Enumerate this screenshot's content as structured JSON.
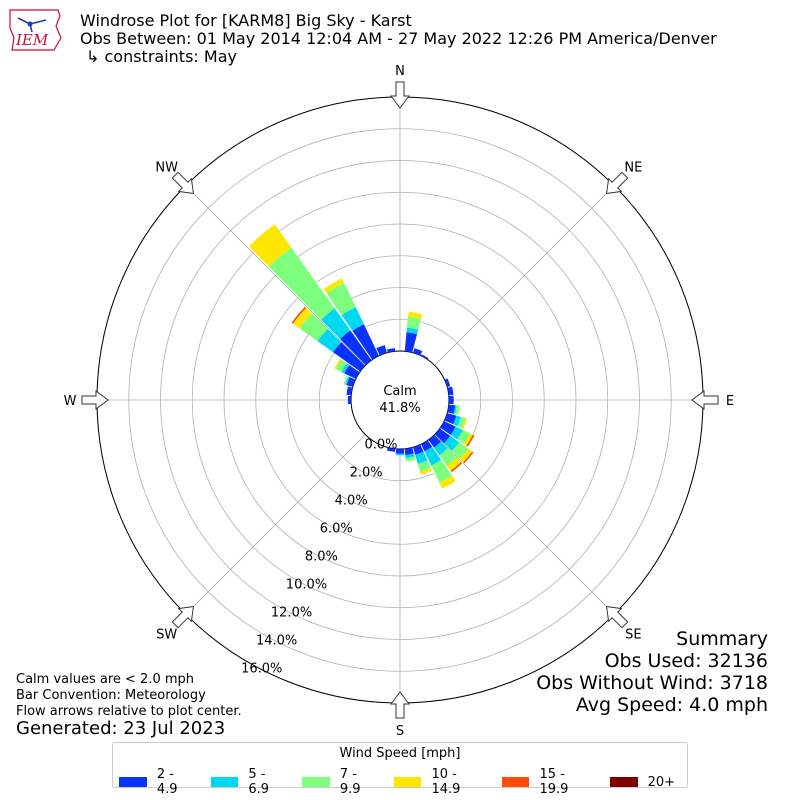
{
  "title": "Windrose Plot for [KARM8] Big Sky - Karst",
  "subtitle": "Obs Between: 01 May 2014 12:04 AM - 27 May 2022 12:26 PM America/Denver",
  "constraints": "↳ constraints: May",
  "logo_text": "IEM",
  "calm_label": "Calm",
  "calm_value": "41.8%",
  "notes": [
    "Calm values are < 2.0 mph",
    "Bar Convention: Meteorology",
    "Flow arrows relative to plot center."
  ],
  "generated": "Generated: 23 Jul 2023",
  "summary": {
    "title": "Summary",
    "obs_used": "Obs Used: 32136",
    "obs_without_wind": "Obs Without Wind: 3718",
    "avg_speed": "Avg Speed: 4.0 mph"
  },
  "legend": {
    "title": "Wind Speed [mph]",
    "items": [
      {
        "label": "2 - 4.9",
        "color": "#0a32ff"
      },
      {
        "label": "5 - 6.9",
        "color": "#00d7f0"
      },
      {
        "label": "7 - 9.9",
        "color": "#7dff7d"
      },
      {
        "label": "10 - 14.9",
        "color": "#ffe600"
      },
      {
        "label": "15 - 19.9",
        "color": "#ff4a0a"
      },
      {
        "label": "20+",
        "color": "#800000"
      }
    ]
  },
  "chart_data": {
    "type": "windrose",
    "directions": [
      "N",
      "NE",
      "E",
      "SE",
      "S",
      "SW",
      "W",
      "NW"
    ],
    "radial_ticks": [
      "0.0%",
      "2.0%",
      "4.0%",
      "6.0%",
      "8.0%",
      "10.0%",
      "12.0%",
      "14.0%",
      "16.0%"
    ],
    "r_max": 16.0,
    "bins": [
      "2 - 4.9",
      "5 - 6.9",
      "7 - 9.9",
      "10 - 14.9",
      "15 - 19.9",
      "20+"
    ],
    "sectors": [
      {
        "dir": 10,
        "values": [
          1.2,
          0.3,
          0.7,
          0.3,
          0.0,
          0.0
        ]
      },
      {
        "dir": 20,
        "values": [
          0.3,
          0.0,
          0.0,
          0.0,
          0.0,
          0.0
        ]
      },
      {
        "dir": 30,
        "values": [
          0.1,
          0.0,
          0.0,
          0.0,
          0.0,
          0.0
        ]
      },
      {
        "dir": 70,
        "values": [
          0.2,
          0.0,
          0.0,
          0.0,
          0.0,
          0.0
        ]
      },
      {
        "dir": 80,
        "values": [
          0.3,
          0.0,
          0.0,
          0.0,
          0.0,
          0.0
        ]
      },
      {
        "dir": 90,
        "values": [
          0.3,
          0.0,
          0.0,
          0.0,
          0.0,
          0.0
        ]
      },
      {
        "dir": 100,
        "values": [
          0.4,
          0.1,
          0.2,
          0.0,
          0.0,
          0.0
        ]
      },
      {
        "dir": 110,
        "values": [
          0.6,
          0.3,
          0.3,
          0.1,
          0.0,
          0.0
        ]
      },
      {
        "dir": 120,
        "values": [
          0.8,
          0.5,
          0.5,
          0.2,
          0.1,
          0.0
        ]
      },
      {
        "dir": 130,
        "values": [
          0.8,
          0.7,
          0.7,
          0.3,
          0.1,
          0.0
        ]
      },
      {
        "dir": 140,
        "values": [
          0.6,
          0.6,
          0.8,
          0.4,
          0.1,
          0.0
        ]
      },
      {
        "dir": 150,
        "values": [
          0.5,
          1.0,
          1.2,
          0.4,
          0.0,
          0.0
        ]
      },
      {
        "dir": 160,
        "values": [
          0.5,
          0.6,
          0.5,
          0.2,
          0.0,
          0.0
        ]
      },
      {
        "dir": 170,
        "values": [
          0.4,
          0.2,
          0.2,
          0.0,
          0.0,
          0.0
        ]
      },
      {
        "dir": 180,
        "values": [
          0.3,
          0.1,
          0.0,
          0.0,
          0.0,
          0.0
        ]
      },
      {
        "dir": 190,
        "values": [
          0.2,
          0.0,
          0.0,
          0.0,
          0.0,
          0.0
        ]
      },
      {
        "dir": 270,
        "values": [
          0.2,
          0.0,
          0.0,
          0.0,
          0.0,
          0.0
        ]
      },
      {
        "dir": 280,
        "values": [
          0.3,
          0.0,
          0.0,
          0.0,
          0.0,
          0.0
        ]
      },
      {
        "dir": 290,
        "values": [
          0.4,
          0.1,
          0.1,
          0.0,
          0.0,
          0.0
        ]
      },
      {
        "dir": 300,
        "values": [
          0.8,
          0.2,
          0.4,
          0.1,
          0.0,
          0.0
        ]
      },
      {
        "dir": 310,
        "values": [
          2.1,
          1.2,
          1.4,
          0.5,
          0.1,
          0.0
        ]
      },
      {
        "dir": 320,
        "values": [
          2.3,
          1.7,
          4.7,
          1.8,
          0.0,
          0.0
        ]
      },
      {
        "dir": 330,
        "values": [
          2.2,
          1.2,
          1.7,
          0.3,
          0.0,
          0.0
        ]
      },
      {
        "dir": 340,
        "values": [
          0.5,
          0.0,
          0.0,
          0.0,
          0.0,
          0.0
        ]
      },
      {
        "dir": 350,
        "values": [
          0.2,
          0.0,
          0.0,
          0.0,
          0.0,
          0.0
        ]
      }
    ]
  }
}
